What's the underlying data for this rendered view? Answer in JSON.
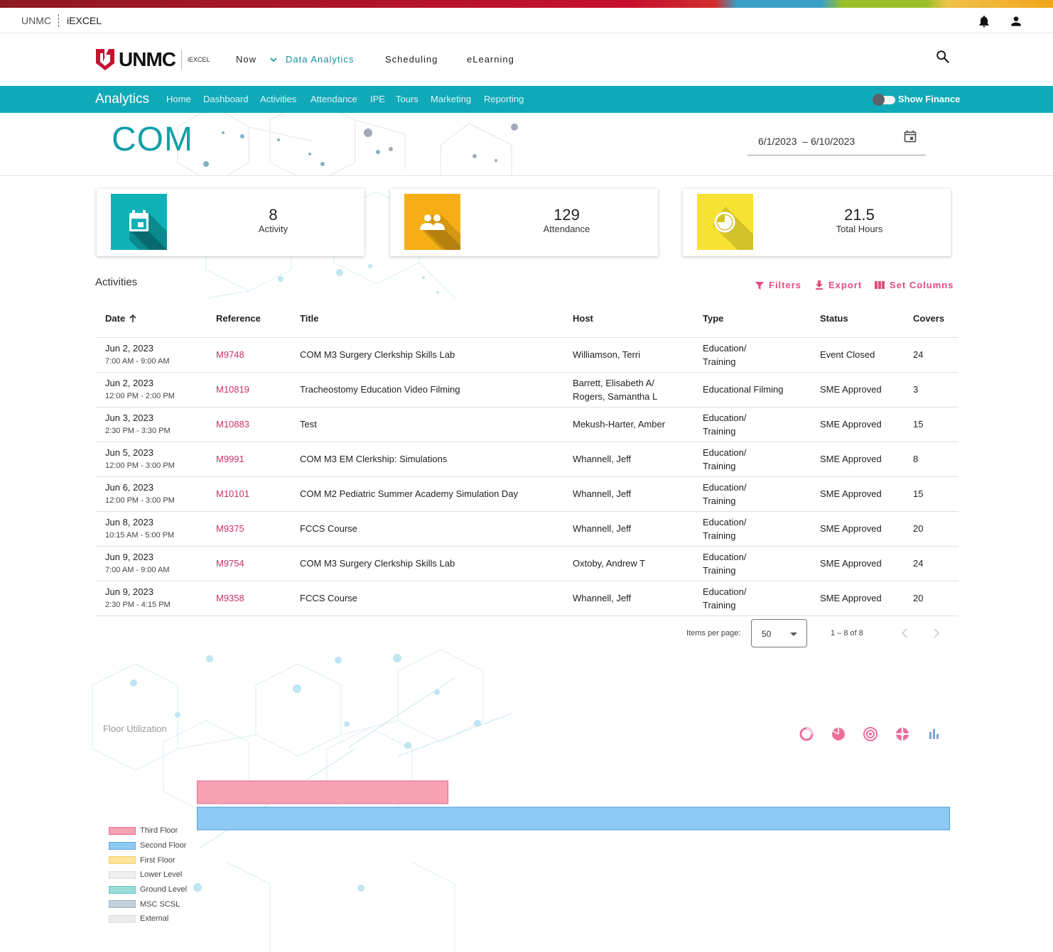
{
  "topbar": {
    "org": "UNMC",
    "app": "iEXCEL"
  },
  "nav": {
    "logo_text": "UNMC",
    "logo_sub": "iEXCEL",
    "items": [
      "Now",
      "Data Analytics",
      "Scheduling",
      "eLearning"
    ]
  },
  "analytics": {
    "brand": "Analytics",
    "links": [
      "Home",
      "Dashboard",
      "Activities",
      "Attendance",
      "IPE",
      "Tours",
      "Marketing",
      "Reporting"
    ],
    "show_finance": "Show Finance"
  },
  "hero": {
    "title": "COM",
    "date_start": "6/1/2023",
    "date_sep": "–",
    "date_end": "6/10/2023"
  },
  "summary": [
    {
      "value": "8",
      "label": "Activity",
      "color": "#0fb1b6",
      "icon": "calendar-icon"
    },
    {
      "value": "129",
      "label": "Attendance",
      "color": "#f5ae13",
      "icon": "group-icon"
    },
    {
      "value": "21.5",
      "label": "Total Hours",
      "color": "#f7e233",
      "icon": "clock-icon"
    }
  ],
  "activities": {
    "title": "Activities",
    "actions": {
      "filters": "Filters",
      "export": "Export",
      "set_columns": "Set Columns"
    },
    "columns": [
      "Date",
      "Reference",
      "Title",
      "Host",
      "Type",
      "Status",
      "Covers"
    ],
    "rows": [
      {
        "date": "Jun 2, 2023",
        "time": "7:00 AM - 9:00 AM",
        "ref": "M9748",
        "title": "COM M3 Surgery Clerkship Skills Lab",
        "host": "Williamson, Terri",
        "host2": "",
        "type": "Education/",
        "type2": "Training",
        "status": "Event Closed",
        "covers": "24"
      },
      {
        "date": "Jun 2, 2023",
        "time": "12:00 PM - 2:00 PM",
        "ref": "M10819",
        "title": "Tracheostomy Education Video Filming",
        "host": "Barrett, Elisabeth A/",
        "host2": "Rogers, Samantha L",
        "type": "Educational Filming",
        "type2": "",
        "status": "SME Approved",
        "covers": "3"
      },
      {
        "date": "Jun 3, 2023",
        "time": "2:30 PM - 3:30 PM",
        "ref": "M10883",
        "title": "Test",
        "host": "Mekush-Harter, Amber",
        "host2": "",
        "type": "Education/",
        "type2": "Training",
        "status": "SME Approved",
        "covers": "15"
      },
      {
        "date": "Jun 5, 2023",
        "time": "12:00 PM - 3:00 PM",
        "ref": "M9991",
        "title": "COM M3 EM Clerkship: Simulations",
        "host": "Whannell, Jeff",
        "host2": "",
        "type": "Education/",
        "type2": "Training",
        "status": "SME Approved",
        "covers": "8"
      },
      {
        "date": "Jun 6, 2023",
        "time": "12:00 PM - 3:00 PM",
        "ref": "M10101",
        "title": "COM M2 Pediatric Summer Academy Simulation Day",
        "host": "Whannell, Jeff",
        "host2": "",
        "type": "Education/",
        "type2": "Training",
        "status": "SME Approved",
        "covers": "15"
      },
      {
        "date": "Jun 8, 2023",
        "time": "10:15 AM - 5:00 PM",
        "ref": "M9375",
        "title": "FCCS Course",
        "host": "Whannell, Jeff",
        "host2": "",
        "type": "Education/",
        "type2": "Training",
        "status": "SME Approved",
        "covers": "20"
      },
      {
        "date": "Jun 9, 2023",
        "time": "7:00 AM - 9:00 AM",
        "ref": "M9754",
        "title": "COM M3 Surgery Clerkship Skills Lab",
        "host": "Oxtoby, Andrew T",
        "host2": "",
        "type": "Education/",
        "type2": "Training",
        "status": "SME Approved",
        "covers": "24"
      },
      {
        "date": "Jun 9, 2023",
        "time": "2:30 PM - 4:15 PM",
        "ref": "M9358",
        "title": "FCCS Course",
        "host": "Whannell, Jeff",
        "host2": "",
        "type": "Education/",
        "type2": "Training",
        "status": "SME Approved",
        "covers": "20"
      }
    ]
  },
  "paginator": {
    "label": "Items per page:",
    "page_size": "50",
    "range": "1 – 8 of 8"
  },
  "floor": {
    "title": "Floor Utilization",
    "chart_icons": [
      "doughnut-chart-icon",
      "pie-chart-icon",
      "polar-chart-icon",
      "radar-chart-icon",
      "bar-chart-icon"
    ]
  },
  "chart_data": {
    "type": "bar",
    "orientation": "horizontal",
    "title": "Floor Utilization",
    "series": [
      {
        "name": "Third Floor",
        "value": 1,
        "color": "#f7a1b4"
      },
      {
        "name": "Second Floor",
        "value": 3,
        "color": "#8ec9f4"
      },
      {
        "name": "First Floor",
        "value": 0,
        "color": "#fde49a"
      },
      {
        "name": "Lower Level",
        "value": 0,
        "color": "#efefef"
      },
      {
        "name": "Ground Level",
        "value": 0,
        "color": "#99ddd9"
      },
      {
        "name": "MSC SCSL",
        "value": 0,
        "color": "#c3d1dc"
      },
      {
        "name": "External",
        "value": 0,
        "color": "#ececec"
      }
    ],
    "legend_position": "bottom-left"
  }
}
